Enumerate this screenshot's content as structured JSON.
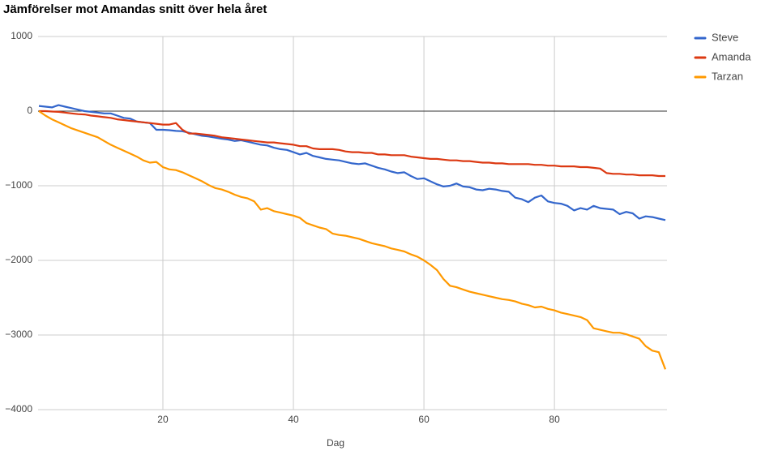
{
  "chart_data": {
    "type": "line",
    "title": "Jämförelser mot Amandas snitt över hela året",
    "x_label": "Dag",
    "x": [
      1,
      2,
      3,
      4,
      5,
      6,
      7,
      8,
      9,
      10,
      11,
      12,
      13,
      14,
      15,
      16,
      17,
      18,
      19,
      20,
      21,
      22,
      23,
      24,
      25,
      26,
      27,
      28,
      29,
      30,
      31,
      32,
      33,
      34,
      35,
      36,
      37,
      38,
      39,
      40,
      41,
      42,
      43,
      44,
      45,
      46,
      47,
      48,
      49,
      50,
      51,
      52,
      53,
      54,
      55,
      56,
      57,
      58,
      59,
      60,
      61,
      62,
      63,
      64,
      65,
      66,
      67,
      68,
      69,
      70,
      71,
      72,
      73,
      74,
      75,
      76,
      77,
      78,
      79,
      80,
      81,
      82,
      83,
      84,
      85,
      86,
      87,
      88,
      89,
      90,
      91,
      92,
      93,
      94,
      95,
      96,
      97
    ],
    "series": [
      {
        "name": "Steve",
        "color": "#3366cc",
        "values": [
          70,
          60,
          50,
          80,
          60,
          40,
          20,
          0,
          -10,
          -20,
          -30,
          -30,
          -60,
          -90,
          -100,
          -140,
          -150,
          -160,
          -250,
          -250,
          -255,
          -265,
          -270,
          -290,
          -310,
          -330,
          -340,
          -355,
          -370,
          -380,
          -400,
          -390,
          -410,
          -430,
          -450,
          -460,
          -490,
          -510,
          -520,
          -550,
          -580,
          -560,
          -600,
          -620,
          -640,
          -650,
          -660,
          -680,
          -700,
          -710,
          -700,
          -730,
          -760,
          -780,
          -810,
          -830,
          -820,
          -870,
          -910,
          -900,
          -940,
          -980,
          -1010,
          -1000,
          -970,
          -1010,
          -1020,
          -1050,
          -1060,
          -1040,
          -1050,
          -1070,
          -1080,
          -1160,
          -1180,
          -1220,
          -1160,
          -1130,
          -1210,
          -1230,
          -1240,
          -1270,
          -1330,
          -1300,
          -1320,
          -1270,
          -1300,
          -1310,
          -1320,
          -1380,
          -1350,
          -1370,
          -1440,
          -1410,
          -1420,
          -1440,
          -1460
        ]
      },
      {
        "name": "Amanda",
        "color": "#dc3912",
        "values": [
          0,
          0,
          -5,
          -10,
          -20,
          -30,
          -40,
          -45,
          -60,
          -70,
          -80,
          -90,
          -110,
          -120,
          -130,
          -140,
          -150,
          -160,
          -170,
          -180,
          -180,
          -160,
          -250,
          -300,
          -300,
          -310,
          -320,
          -330,
          -350,
          -360,
          -370,
          -380,
          -390,
          -400,
          -410,
          -420,
          -420,
          -430,
          -440,
          -450,
          -470,
          -470,
          -500,
          -510,
          -510,
          -510,
          -520,
          -540,
          -550,
          -550,
          -560,
          -560,
          -580,
          -580,
          -590,
          -590,
          -590,
          -610,
          -620,
          -630,
          -640,
          -640,
          -650,
          -660,
          -660,
          -670,
          -670,
          -680,
          -690,
          -690,
          -700,
          -700,
          -710,
          -710,
          -710,
          -710,
          -720,
          -720,
          -730,
          -730,
          -740,
          -740,
          -740,
          -750,
          -750,
          -760,
          -770,
          -830,
          -840,
          -840,
          -850,
          -850,
          -860,
          -860,
          -860,
          -870,
          -870
        ]
      },
      {
        "name": "Tarzan",
        "color": "#ff9900",
        "values": [
          0,
          -60,
          -110,
          -150,
          -190,
          -230,
          -260,
          -290,
          -320,
          -350,
          -400,
          -450,
          -490,
          -530,
          -570,
          -610,
          -660,
          -690,
          -680,
          -750,
          -780,
          -790,
          -820,
          -860,
          -900,
          -940,
          -990,
          -1030,
          -1050,
          -1080,
          -1120,
          -1150,
          -1170,
          -1210,
          -1320,
          -1300,
          -1340,
          -1360,
          -1380,
          -1400,
          -1430,
          -1500,
          -1530,
          -1560,
          -1580,
          -1640,
          -1660,
          -1670,
          -1690,
          -1710,
          -1740,
          -1770,
          -1790,
          -1810,
          -1840,
          -1860,
          -1880,
          -1920,
          -1950,
          -2000,
          -2060,
          -2130,
          -2250,
          -2340,
          -2360,
          -2390,
          -2420,
          -2440,
          -2460,
          -2480,
          -2500,
          -2520,
          -2530,
          -2550,
          -2580,
          -2600,
          -2630,
          -2620,
          -2650,
          -2670,
          -2700,
          -2720,
          -2740,
          -2760,
          -2800,
          -2910,
          -2930,
          -2950,
          -2970,
          -2970,
          -2990,
          -3020,
          -3050,
          -3150,
          -3210,
          -3230,
          -3460
        ]
      }
    ],
    "xlim": [
      1,
      97
    ],
    "xticks": [
      20,
      40,
      60,
      80
    ],
    "ylim": [
      -4000,
      1000
    ],
    "yticks": [
      {
        "value": -4000,
        "label": "−4000"
      },
      {
        "value": -3000,
        "label": "−3000"
      },
      {
        "value": -2000,
        "label": "−2000"
      },
      {
        "value": -1000,
        "label": "−1000"
      },
      0,
      1000
    ],
    "grid": true,
    "legend": "right"
  }
}
